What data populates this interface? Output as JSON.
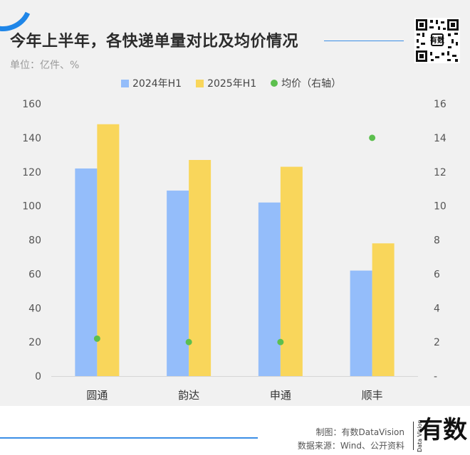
{
  "header": {
    "title": "今年上半年，各快递单量对比及均价情况",
    "unit": "单位：亿件、%"
  },
  "colors": {
    "series_2024": "#94bdfa",
    "series_2025": "#f9d65b",
    "avg_price": "#5cbf4e",
    "accent": "#1f86e8",
    "rule": "#3b8ee6"
  },
  "chart_data": {
    "type": "bar",
    "title": "今年上半年，各快递单量对比及均价情况",
    "categories": [
      "圆通",
      "韵达",
      "申通",
      "顺丰"
    ],
    "series": [
      {
        "name": "2024年H1",
        "axis": "left",
        "values": [
          122,
          109,
          102,
          62
        ]
      },
      {
        "name": "2025年H1",
        "axis": "left",
        "values": [
          148,
          127,
          123,
          78
        ]
      },
      {
        "name": "均价（右轴）",
        "axis": "right",
        "kind": "scatter",
        "values": [
          2.2,
          2.0,
          2.0,
          14.0
        ]
      }
    ],
    "ylim_left": [
      0,
      160
    ],
    "yticks_left": [
      "0",
      "20",
      "40",
      "60",
      "80",
      "100",
      "120",
      "140",
      "160"
    ],
    "ylim_right": [
      0,
      16
    ],
    "yticks_right": [
      "-",
      "2",
      "4",
      "6",
      "8",
      "10",
      "12",
      "14",
      "16"
    ],
    "legend_position": "top-center",
    "grid": false
  },
  "footer": {
    "maker": "制图：有数DataVision",
    "source": "数据来源：Wind、公开资料",
    "logo_text": "有数",
    "logo_sub": "Data Vision"
  }
}
